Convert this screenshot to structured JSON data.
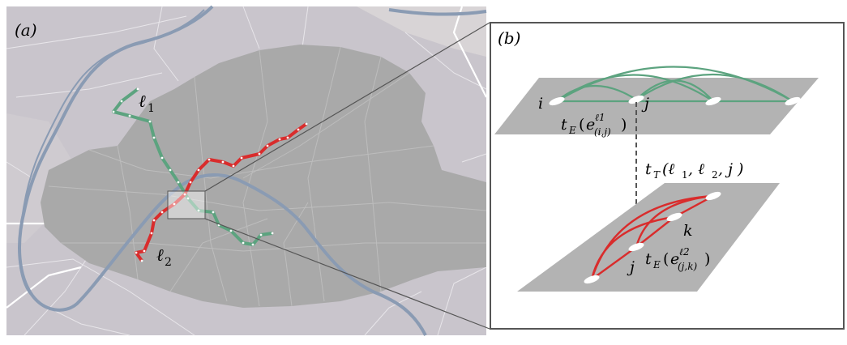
{
  "panel_a": {
    "label": "(a)",
    "line1_label": "ℓ",
    "line1_sub": "1",
    "line2_label": "ℓ",
    "line2_sub": "2",
    "colors": {
      "map_bg": "#c9c5cc",
      "city": "#a8a8a8",
      "river": "#8a9bb3",
      "line1": "#5ca37f",
      "line2": "#d92c2c"
    }
  },
  "panel_b": {
    "label": "(b)",
    "top_layer": {
      "node_i": "i",
      "node_j": "j",
      "edge_label": {
        "t": "t",
        "sub": "E",
        "open": "(",
        "e": "e",
        "sup": "ℓ1",
        "esub": "(i,j)",
        "close": ")"
      }
    },
    "transfer_label": {
      "t": "t",
      "sub": "T",
      "args": "(ℓ",
      "a1": "1",
      "mid": ", ℓ",
      "a2": "2",
      "end": ", j )"
    },
    "bottom_layer": {
      "node_j": "j",
      "node_k": "k",
      "edge_label": {
        "t": "t",
        "sub": "E",
        "open": "(",
        "e": "e",
        "sup": "ℓ2",
        "esub": "(j,k)",
        "close": ")"
      }
    },
    "colors": {
      "layer": "#b3b3b3",
      "top_edges": "#5ca37f",
      "bottom_edges": "#d92c2c"
    }
  }
}
